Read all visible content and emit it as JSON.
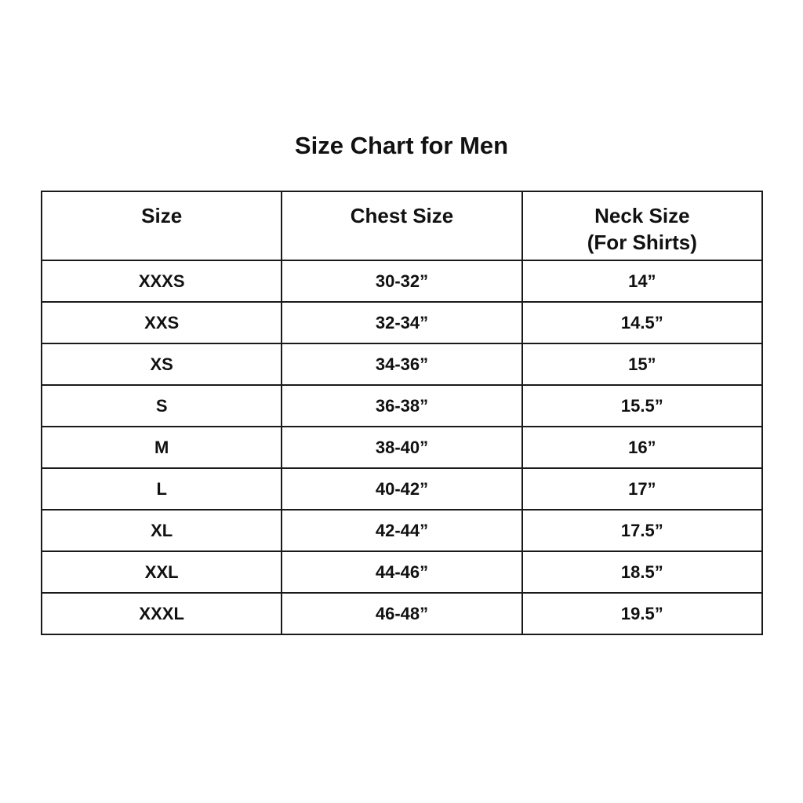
{
  "title": "Size Chart for Men",
  "table": {
    "headers": [
      "Size",
      "Chest Size",
      "Neck Size"
    ],
    "header_sub": [
      "",
      "",
      "(For Shirts)"
    ],
    "rows": [
      [
        "XXXS",
        "30-32”",
        "14”"
      ],
      [
        "XXS",
        "32-34”",
        "14.5”"
      ],
      [
        "XS",
        "34-36”",
        "15”"
      ],
      [
        "S",
        "36-38”",
        "15.5”"
      ],
      [
        "M",
        "38-40”",
        "16”"
      ],
      [
        "L",
        "40-42”",
        "17”"
      ],
      [
        "XL",
        "42-44”",
        "17.5”"
      ],
      [
        "XXL",
        "44-46”",
        "18.5”"
      ],
      [
        "XXXL",
        "46-48”",
        "19.5”"
      ]
    ]
  }
}
